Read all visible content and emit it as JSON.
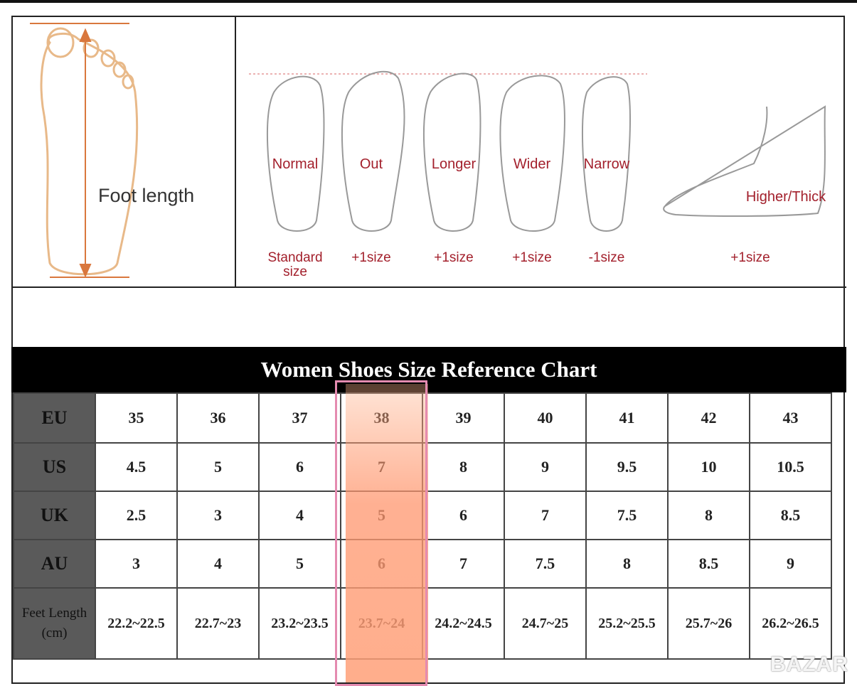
{
  "foot_diagram": {
    "label": "Foot length"
  },
  "foot_types": [
    {
      "name": "Normal",
      "size": "Standard size"
    },
    {
      "name": "Out",
      "size": "+1size"
    },
    {
      "name": "Longer",
      "size": "+1size"
    },
    {
      "name": "Wider",
      "size": "+1size"
    },
    {
      "name": "Narrow",
      "size": "-1size"
    }
  ],
  "instep": {
    "name": "Higher/Thick",
    "size": "+1size"
  },
  "table": {
    "title": "Women Shoes Size Reference Chart",
    "rows": [
      {
        "header": "EU",
        "cells": [
          "35",
          "36",
          "37",
          "38",
          "39",
          "40",
          "41",
          "42",
          "43"
        ]
      },
      {
        "header": "US",
        "cells": [
          "4.5",
          "5",
          "6",
          "7",
          "8",
          "9",
          "9.5",
          "10",
          "10.5"
        ]
      },
      {
        "header": "UK",
        "cells": [
          "2.5",
          "3",
          "4",
          "5",
          "6",
          "7",
          "7.5",
          "8",
          "8.5"
        ]
      },
      {
        "header": "AU",
        "cells": [
          "3",
          "4",
          "5",
          "6",
          "7",
          "7.5",
          "8",
          "8.5",
          "9"
        ]
      },
      {
        "header": "Feet Length (cm)",
        "cells": [
          "22.2~22.5",
          "22.7~23",
          "23.2~23.5",
          "23.7~24",
          "24.2~24.5",
          "24.7~25",
          "25.2~25.5",
          "25.7~26",
          "26.2~26.5"
        ]
      }
    ]
  },
  "watermark": "BAZAR"
}
